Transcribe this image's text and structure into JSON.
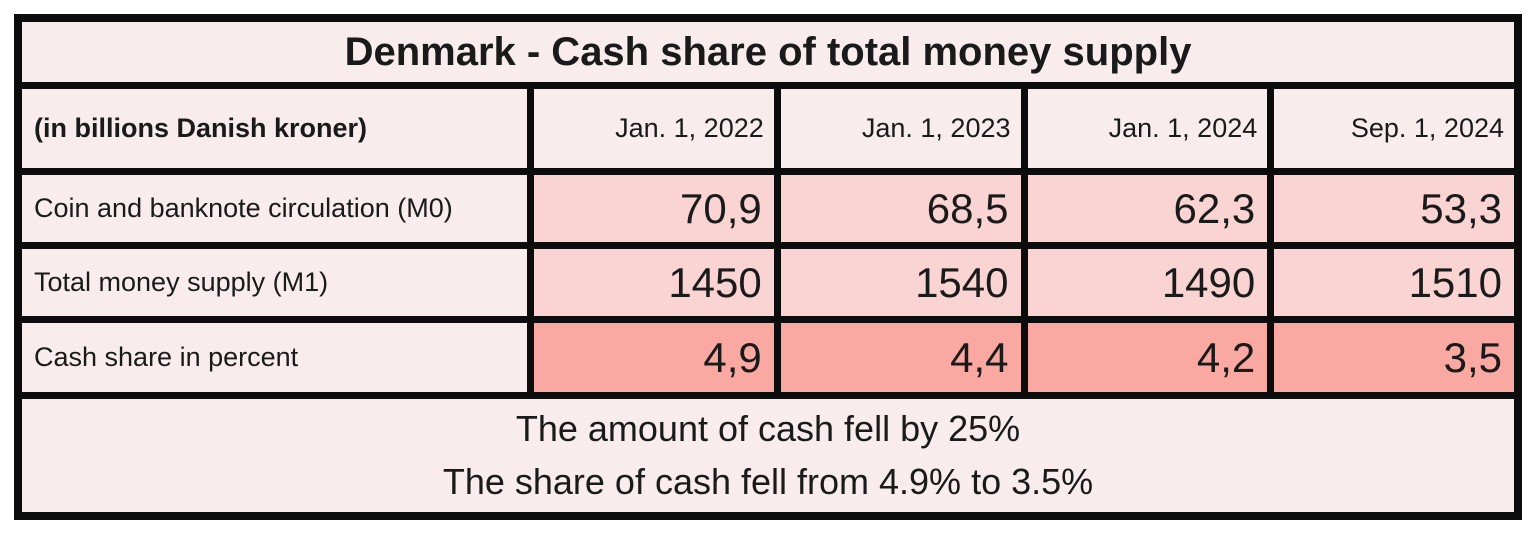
{
  "title": "Denmark - Cash share of total money supply",
  "table": {
    "unit_label": "(in billions Danish kroner)",
    "columns": [
      "Jan. 1, 2022",
      "Jan. 1, 2023",
      "Jan. 1, 2024",
      "Sep. 1, 2024"
    ],
    "rows": [
      {
        "label": "Coin and banknote circulation (M0)",
        "values": [
          "70,9",
          "68,5",
          "62,3",
          "53,3"
        ]
      },
      {
        "label": "Total money supply (M1)",
        "values": [
          "1450",
          "1540",
          "1490",
          "1510"
        ]
      },
      {
        "label": "Cash share in percent",
        "values": [
          "4,9",
          "4,4",
          "4,2",
          "3,5"
        ]
      }
    ]
  },
  "footer": {
    "line1": "The amount of cash fell by 25%",
    "line2": "The share of cash fell from 4.9% to 3.5%"
  },
  "colors": {
    "cell_light": "#f8ecec",
    "cell_pink": "#fad4d2",
    "cell_salmon": "#faa8a2",
    "border": "#0c0c0c",
    "text": "#1a1a1a"
  },
  "chart_data": {
    "type": "table",
    "title": "Denmark - Cash share of total money supply",
    "unit": "billions Danish kroner",
    "categories": [
      "Jan. 1, 2022",
      "Jan. 1, 2023",
      "Jan. 1, 2024",
      "Sep. 1, 2024"
    ],
    "series": [
      {
        "name": "Coin and banknote circulation (M0)",
        "values": [
          70.9,
          68.5,
          62.3,
          53.3
        ]
      },
      {
        "name": "Total money supply (M1)",
        "values": [
          1450,
          1540,
          1490,
          1510
        ]
      },
      {
        "name": "Cash share in percent",
        "values": [
          4.9,
          4.4,
          4.2,
          3.5
        ]
      }
    ],
    "annotations": [
      "The amount of cash fell by 25%",
      "The share of cash fell from 4.9% to 3.5%"
    ],
    "legend_position": "none",
    "grid": true
  }
}
